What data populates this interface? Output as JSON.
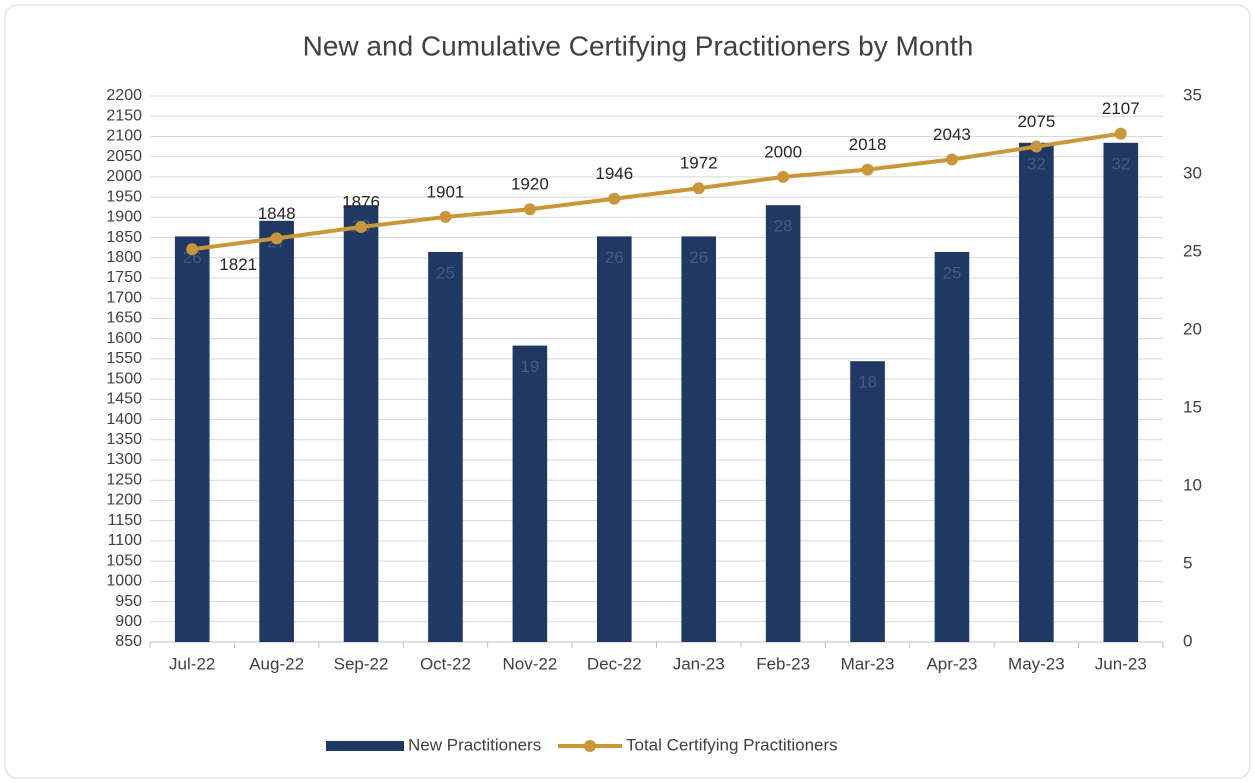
{
  "chart_data": {
    "type": "bar+line",
    "title": "New and Cumulative Certifying Practitioners by Month",
    "categories": [
      "Jul-22",
      "Aug-22",
      "Sep-22",
      "Oct-22",
      "Nov-22",
      "Dec-22",
      "Jan-23",
      "Feb-23",
      "Mar-23",
      "Apr-23",
      "May-23",
      "Jun-23"
    ],
    "series": [
      {
        "name": "New Practitioners",
        "type": "bar",
        "color": "#1f3864",
        "axis": "y2",
        "values": [
          26,
          27,
          28,
          25,
          19,
          26,
          26,
          28,
          18,
          25,
          32,
          32
        ]
      },
      {
        "name": "Total Certifying Practitioners",
        "type": "line",
        "color": "#c9963b",
        "values": [
          1821,
          1848,
          1876,
          1901,
          1920,
          1946,
          1972,
          2000,
          2018,
          2043,
          2075,
          2107
        ]
      }
    ],
    "ylim": [
      850,
      2200
    ],
    "yticks": [
      850,
      900,
      950,
      1000,
      1050,
      1100,
      1150,
      1200,
      1250,
      1300,
      1350,
      1400,
      1450,
      1500,
      1550,
      1600,
      1650,
      1700,
      1750,
      1800,
      1850,
      1900,
      1950,
      2000,
      2050,
      2100,
      2150,
      2200
    ],
    "y2lim": [
      0,
      35
    ],
    "y2ticks": [
      0,
      5,
      10,
      15,
      20,
      25,
      30,
      35
    ],
    "grid": true,
    "legend": "bottom"
  }
}
